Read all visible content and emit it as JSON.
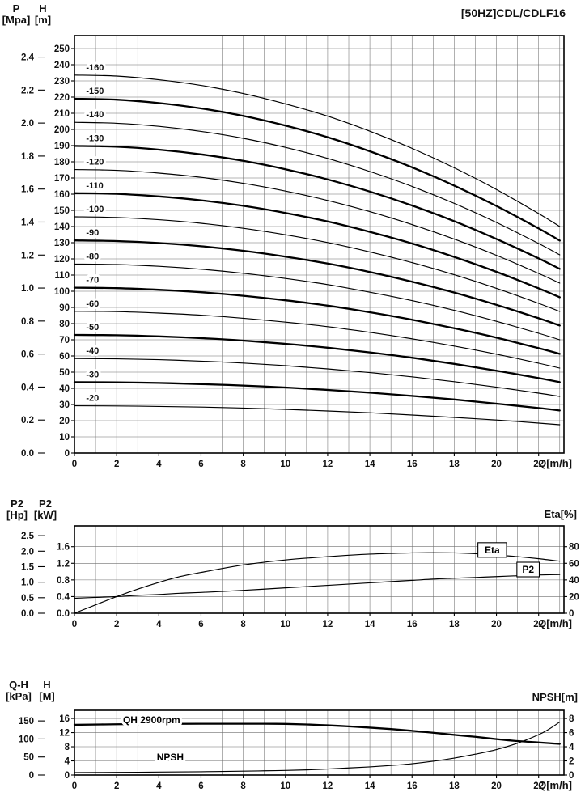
{
  "title": "[50HZ]CDL/CDLF16",
  "x_axis_label": "Q[m/h]",
  "top_chart": {
    "p_title": "P",
    "p_unit": "[Mpa]",
    "h_title": "H",
    "h_unit": "[m]"
  },
  "power_chart": {
    "p2_hp_title": "P2",
    "p2_hp_unit": "[Hp]",
    "p2_kw_title": "P2",
    "p2_kw_unit": "[kW]",
    "right_label": "Eta[%]"
  },
  "npsh_chart": {
    "qh_title": "Q-H",
    "qh_unit": "[kPa]",
    "h_title": "H",
    "h_unit": "[M]",
    "right_label": "NPSH[m]"
  },
  "chart_data": [
    {
      "id": "head",
      "type": "line",
      "title": "[50HZ]CDL/CDLF16",
      "xlabel": "Q[m/h]",
      "grid": "on",
      "x_range": [
        0,
        23.2
      ],
      "y_range": [
        0,
        258
      ],
      "x_ticks": [
        0,
        2,
        4,
        6,
        8,
        10,
        12,
        14,
        16,
        18,
        20,
        22
      ],
      "axis_p_mpa": {
        "label": "P [Mpa]",
        "ticks": [
          "0.0",
          "0.2",
          "0.4",
          "0.6",
          "0.8",
          "1.0",
          "1.2",
          "1.4",
          "1.6",
          "1.8",
          "2.0",
          "2.2",
          "2.4"
        ]
      },
      "axis_h_m": {
        "label": "H [m]",
        "ticks": [
          0,
          10,
          20,
          30,
          40,
          50,
          60,
          70,
          80,
          90,
          100,
          110,
          120,
          130,
          140,
          150,
          160,
          170,
          180,
          190,
          200,
          210,
          220,
          230,
          240,
          250
        ]
      },
      "q": [
        0,
        2,
        4,
        6,
        8,
        10,
        12,
        14,
        16,
        18,
        20,
        22,
        23
      ],
      "series": [
        {
          "name": "-160",
          "bold": false,
          "H": [
            233.6,
            233.0,
            230.7,
            227.2,
            222.2,
            215.8,
            208.2,
            198.9,
            188.3,
            176.3,
            162.9,
            148.0,
            140.0
          ]
        },
        {
          "name": "-150",
          "bold": true,
          "H": [
            219.0,
            218.4,
            216.3,
            213.0,
            208.4,
            202.4,
            195.2,
            186.5,
            176.6,
            165.3,
            152.7,
            138.8,
            131.3
          ]
        },
        {
          "name": "-140",
          "bold": false,
          "H": [
            204.4,
            203.8,
            201.9,
            198.8,
            194.5,
            188.9,
            182.1,
            174.0,
            164.8,
            154.3,
            142.5,
            129.5,
            122.5
          ]
        },
        {
          "name": "-130",
          "bold": true,
          "H": [
            189.8,
            189.3,
            187.5,
            184.6,
            180.6,
            175.4,
            169.1,
            161.6,
            153.0,
            143.3,
            132.3,
            120.3,
            113.8
          ]
        },
        {
          "name": "-120",
          "bold": false,
          "H": [
            175.2,
            174.7,
            173.0,
            170.4,
            166.7,
            161.9,
            156.1,
            149.2,
            141.2,
            132.2,
            122.2,
            111.0,
            105.0
          ]
        },
        {
          "name": "-110",
          "bold": true,
          "H": [
            160.6,
            160.2,
            158.6,
            156.2,
            152.8,
            148.4,
            143.1,
            136.7,
            129.5,
            121.2,
            112.0,
            101.8,
            96.3
          ]
        },
        {
          "name": "-100",
          "bold": false,
          "H": [
            146.0,
            145.6,
            144.2,
            142.0,
            138.9,
            134.9,
            130.1,
            124.3,
            117.7,
            110.2,
            101.8,
            92.5,
            87.5
          ]
        },
        {
          "name": "-90",
          "bold": true,
          "H": [
            131.4,
            131.0,
            129.8,
            127.8,
            125.0,
            121.4,
            117.1,
            111.9,
            105.9,
            99.2,
            91.6,
            83.3,
            78.8
          ]
        },
        {
          "name": "-80",
          "bold": false,
          "H": [
            116.8,
            116.5,
            115.4,
            113.6,
            111.1,
            107.9,
            104.1,
            99.4,
            94.2,
            88.2,
            81.4,
            74.0,
            70.0
          ]
        },
        {
          "name": "-70",
          "bold": true,
          "H": [
            102.2,
            101.9,
            100.9,
            99.4,
            97.2,
            94.4,
            91.1,
            87.0,
            82.4,
            77.1,
            71.3,
            64.8,
            61.3
          ]
        },
        {
          "name": "-60",
          "bold": false,
          "H": [
            87.6,
            87.4,
            86.5,
            85.2,
            83.3,
            80.9,
            78.1,
            74.6,
            70.6,
            66.1,
            61.1,
            55.5,
            52.5
          ]
        },
        {
          "name": "-50",
          "bold": true,
          "H": [
            73.0,
            72.8,
            72.1,
            71.0,
            69.5,
            67.5,
            65.1,
            62.2,
            58.9,
            55.1,
            50.9,
            46.3,
            43.8
          ]
        },
        {
          "name": "-40",
          "bold": false,
          "H": [
            58.4,
            58.2,
            57.7,
            56.8,
            55.6,
            54.0,
            52.0,
            49.7,
            47.1,
            44.1,
            40.7,
            37.0,
            35.0
          ]
        },
        {
          "name": "-30",
          "bold": true,
          "H": [
            43.8,
            43.7,
            43.3,
            42.6,
            41.7,
            40.5,
            39.0,
            37.3,
            35.3,
            33.1,
            30.5,
            27.8,
            26.3
          ]
        },
        {
          "name": "-20",
          "bold": false,
          "H": [
            29.2,
            29.1,
            28.8,
            28.4,
            27.8,
            27.0,
            26.0,
            24.9,
            23.5,
            22.0,
            20.4,
            18.5,
            17.5
          ]
        }
      ]
    },
    {
      "id": "power-eta",
      "type": "line",
      "xlabel": "Q[m/h]",
      "grid": "on",
      "x_range": [
        0,
        23.2
      ],
      "y_range": [
        0,
        2.1
      ],
      "x_ticks": [
        0,
        2,
        4,
        6,
        8,
        10,
        12,
        14,
        16,
        18,
        20,
        22
      ],
      "axis_p2_hp": {
        "label": "P2 [Hp]",
        "ticks": [
          "0.0",
          "0.5",
          "1.0",
          "1.5",
          "2.0",
          "2.5"
        ]
      },
      "axis_p2_kw": {
        "label": "P2 [kW]",
        "ticks": [
          "0.0",
          "0.4",
          "0.8",
          "1.2",
          "1.6"
        ]
      },
      "axis_eta": {
        "label": "Eta[%]",
        "ticks": [
          0,
          20,
          40,
          60,
          80
        ]
      },
      "q": [
        0,
        1,
        2,
        3,
        4,
        5,
        6,
        8,
        10,
        12,
        14,
        16,
        17,
        18,
        19,
        20,
        21,
        22,
        23
      ],
      "series": [
        {
          "name": "Eta",
          "axis": "eta_pct",
          "bold": false,
          "values": [
            0,
            10,
            20,
            29,
            37,
            44,
            49,
            58,
            64,
            68,
            71,
            72.5,
            72.7,
            72.5,
            71.5,
            70,
            68,
            65.5,
            62.5
          ]
        },
        {
          "name": "P2",
          "axis": "kw",
          "bold": false,
          "values": [
            0.36,
            0.38,
            0.4,
            0.43,
            0.45,
            0.48,
            0.5,
            0.55,
            0.61,
            0.67,
            0.73,
            0.79,
            0.82,
            0.84,
            0.86,
            0.88,
            0.9,
            0.92,
            0.93
          ]
        }
      ],
      "annotations": [
        {
          "text": "Eta",
          "x": 19.8,
          "y": 1.52,
          "boxed": true
        },
        {
          "text": "P2",
          "x": 21.5,
          "y": 1.05,
          "boxed": true
        }
      ]
    },
    {
      "id": "qh-npsh",
      "type": "line",
      "xlabel": "Q[m/h]",
      "grid": "on",
      "x_range": [
        0,
        23.2
      ],
      "y_range": [
        0,
        18.3
      ],
      "x_ticks": [
        0,
        2,
        4,
        6,
        8,
        10,
        12,
        14,
        16,
        18,
        20,
        22
      ],
      "axis_kpa": {
        "label": "Q-H [kPa]",
        "ticks": [
          0,
          50,
          100,
          150
        ]
      },
      "axis_m": {
        "label": "H [M]",
        "ticks": [
          0,
          4,
          8,
          12,
          16
        ]
      },
      "axis_npsh": {
        "label": "NPSH[m]",
        "ticks": [
          0,
          2,
          4,
          6,
          8
        ]
      },
      "q": [
        0,
        2,
        4,
        6,
        8,
        9,
        10,
        11,
        12,
        13,
        14,
        15,
        16,
        17,
        18,
        19,
        20,
        21,
        22,
        22.5,
        23
      ],
      "series": [
        {
          "name": "QH 2900rpm",
          "axis": "m",
          "bold": true,
          "values": [
            14.2,
            14.35,
            14.45,
            14.5,
            14.5,
            14.5,
            14.45,
            14.3,
            14.05,
            13.75,
            13.4,
            13.0,
            12.5,
            11.95,
            11.35,
            10.8,
            10.15,
            9.6,
            9.2,
            9.0,
            8.8
          ]
        },
        {
          "name": "NPSH",
          "axis": "npsh_m",
          "bold": false,
          "values": [
            0.35,
            0.38,
            0.42,
            0.47,
            0.55,
            0.6,
            0.65,
            0.73,
            0.85,
            1.0,
            1.15,
            1.35,
            1.6,
            1.95,
            2.4,
            2.95,
            3.6,
            4.5,
            5.7,
            6.5,
            7.5
          ]
        }
      ],
      "annotations": [
        {
          "text": "QH 2900rpm",
          "x": 2.3,
          "y": 15.6,
          "boxed": false
        },
        {
          "text": "NPSH",
          "x": 3.9,
          "y": 5.0,
          "boxed": false
        }
      ]
    }
  ]
}
